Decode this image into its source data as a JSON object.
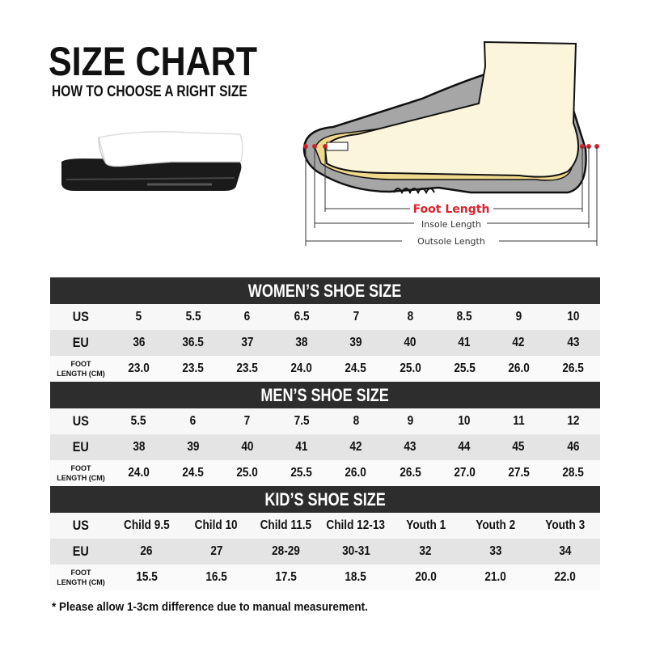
{
  "header": {
    "title": "SIZE CHART",
    "subtitle": "HOW TO CHOOSE A RIGHT SIZE"
  },
  "diagram": {
    "foot_length": "Foot Length",
    "insole_length": "Insole Length",
    "outsole_length": "Outsole Length",
    "colors": {
      "foot_length": "#d9232e",
      "sole": "#a6a6a6",
      "foot": "#fbf5dc",
      "insole": "#f1d98c"
    }
  },
  "labels": {
    "us": "US",
    "eu": "EU",
    "foot_1": "FOOT",
    "foot_2": "LENGTH (CM)"
  },
  "women": {
    "title": "WOMEN’S SHOE SIZE",
    "us": [
      "5",
      "5.5",
      "6",
      "6.5",
      "7",
      "8",
      "8.5",
      "9",
      "10"
    ],
    "eu": [
      "36",
      "36.5",
      "37",
      "38",
      "39",
      "40",
      "41",
      "42",
      "43"
    ],
    "foot": [
      "23.0",
      "23.5",
      "23.5",
      "24.0",
      "24.5",
      "25.0",
      "25.5",
      "26.0",
      "26.5"
    ]
  },
  "men": {
    "title": "MEN’S SHOE SIZE",
    "us": [
      "5.5",
      "6",
      "7",
      "7.5",
      "8",
      "9",
      "10",
      "11",
      "12"
    ],
    "eu": [
      "38",
      "39",
      "40",
      "41",
      "42",
      "43",
      "44",
      "45",
      "46"
    ],
    "foot": [
      "24.0",
      "24.5",
      "25.0",
      "25.5",
      "26.0",
      "26.5",
      "27.0",
      "27.5",
      "28.5"
    ]
  },
  "kids": {
    "title": "KID’S SHOE SIZE",
    "us": [
      "Child 9.5",
      "Child 10",
      "Child 11.5",
      "Child 12-13",
      "Youth 1",
      "Youth 2",
      "Youth 3"
    ],
    "eu": [
      "26",
      "27",
      "28-29",
      "30-31",
      "32",
      "33",
      "34"
    ],
    "foot": [
      "15.5",
      "16.5",
      "17.5",
      "18.5",
      "20.0",
      "21.0",
      "22.0"
    ]
  },
  "footnote": "* Please allow 1-3cm difference due to manual measurement."
}
